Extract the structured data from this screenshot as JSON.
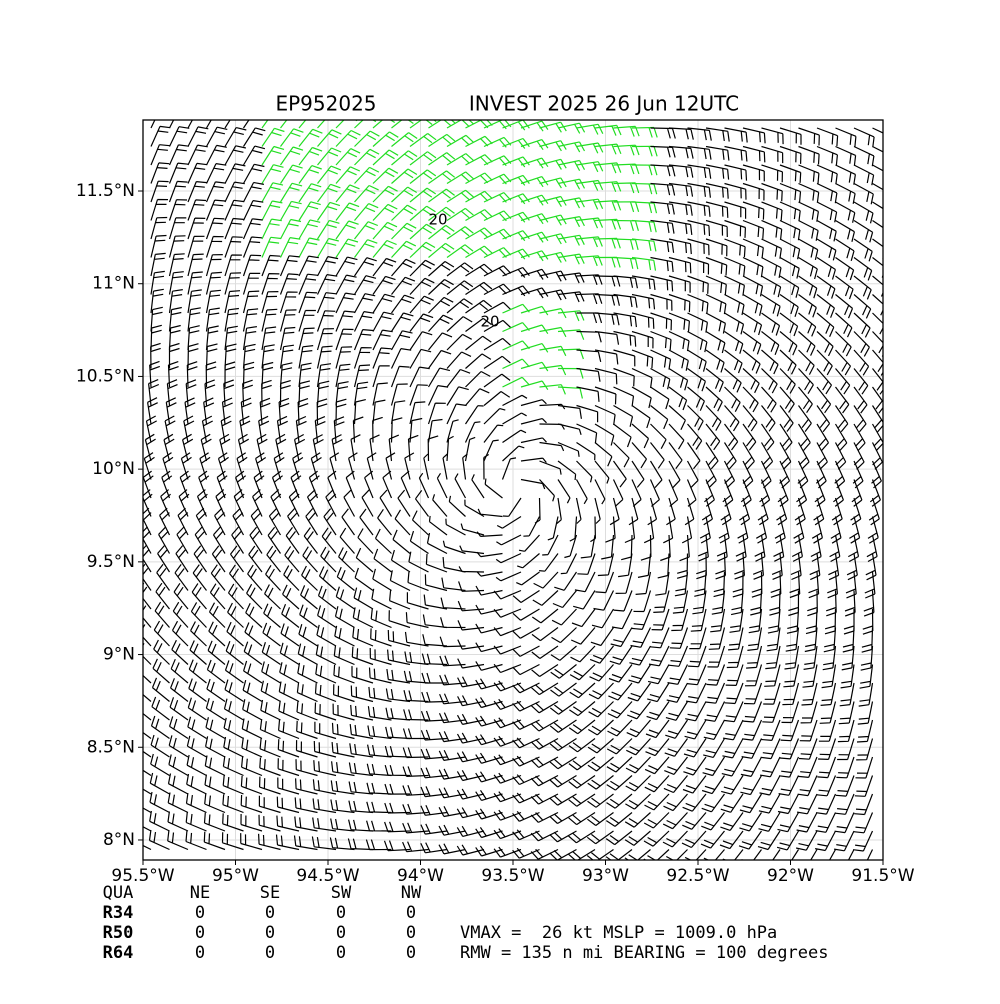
{
  "chart_data": {
    "type": "barbs",
    "title": "EP952025",
    "subtitle": "INVEST 2025 26 Jun 12UTC",
    "xlim": [
      -95.5,
      -91.5
    ],
    "ylim": [
      7.892,
      11.883
    ],
    "xticks": [
      {
        "value": -95.5,
        "label": "95.5°W"
      },
      {
        "value": -95,
        "label": "95°W"
      },
      {
        "value": -94.5,
        "label": "94.5°W"
      },
      {
        "value": -94,
        "label": "94°W"
      },
      {
        "value": -93.5,
        "label": "93.5°W"
      },
      {
        "value": -93,
        "label": "93°W"
      },
      {
        "value": -92.5,
        "label": "92.5°W"
      },
      {
        "value": -92,
        "label": "92°W"
      },
      {
        "value": -91.5,
        "label": "91.5°W"
      }
    ],
    "yticks": [
      {
        "value": 8,
        "label": "8°N"
      },
      {
        "value": 8.5,
        "label": "8.5°N"
      },
      {
        "value": 9,
        "label": "9°N"
      },
      {
        "value": 9.5,
        "label": "9.5°N"
      },
      {
        "value": 10,
        "label": "10°N"
      },
      {
        "value": 10.5,
        "label": "10.5°N"
      },
      {
        "value": 11,
        "label": "11°N"
      },
      {
        "value": 11.5,
        "label": "11.5°N"
      }
    ],
    "grid": true,
    "contour_labels": [
      "20",
      "20"
    ],
    "table": {
      "header": [
        "QUA",
        "NE",
        "SE",
        "SW",
        "NW"
      ],
      "rows": [
        {
          "label": "R34",
          "values": [
            0,
            0,
            0,
            0
          ]
        },
        {
          "label": "R50",
          "values": [
            0,
            0,
            0,
            0
          ]
        },
        {
          "label": "R64",
          "values": [
            0,
            0,
            0,
            0
          ]
        }
      ]
    },
    "notes": [
      "VMAX =  26 kt MSLP = 1009.0 hPa",
      "RMW = 135 n mi BEARING = 100 degrees"
    ]
  }
}
